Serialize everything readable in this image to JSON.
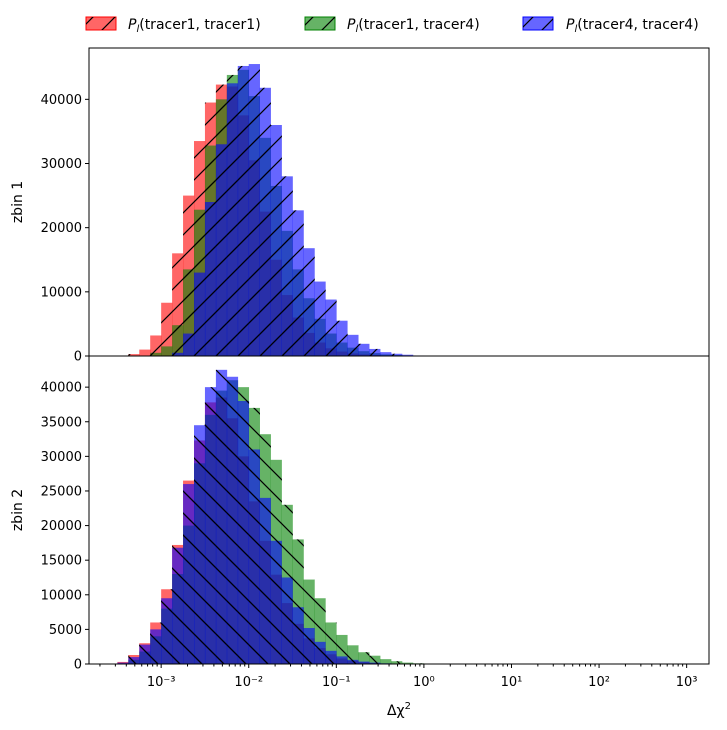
{
  "chart_data": {
    "type": "bar",
    "xlabel": "Δχ²",
    "xscale": "log",
    "xlim": [
      0.00015,
      1800
    ],
    "x_tick_labels": [
      "10⁻³",
      "10⁻²",
      "10⁻¹",
      "10⁰",
      "10¹",
      "10²",
      "10³"
    ],
    "legend_position": "top, above plot",
    "bin_log_edges_start": -3.5,
    "bin_log_width": 0.125,
    "series": [
      {
        "name": "P_l(tracer1, tracer1)",
        "color": "#ff0000",
        "alpha": 0.6
      },
      {
        "name": "P_l(tracer1, tracer4)",
        "color": "#008000",
        "alpha": 0.6
      },
      {
        "name": "P_l(tracer4, tracer4)",
        "color": "#0000ff",
        "alpha": 0.6
      }
    ],
    "panels": [
      {
        "ylabel": "zbin 1",
        "ylim": [
          0,
          48000
        ],
        "yticks": [
          0,
          10000,
          20000,
          30000,
          40000
        ],
        "hatch": "/",
        "series_values": [
          [
            0,
            300,
            1000,
            3200,
            8300,
            16000,
            25000,
            33500,
            39500,
            42300,
            42000,
            37500,
            30500,
            22500,
            15000,
            9500,
            6000,
            3600,
            2100,
            1200,
            700,
            400,
            250,
            150,
            80,
            40,
            20,
            10,
            0
          ],
          [
            0,
            0,
            0,
            500,
            1500,
            4800,
            13500,
            22800,
            32800,
            40000,
            43800,
            44600,
            40500,
            34000,
            26500,
            19500,
            13500,
            9000,
            5800,
            3500,
            2100,
            1300,
            750,
            450,
            250,
            150,
            80,
            40,
            20
          ],
          [
            0,
            0,
            0,
            0,
            0,
            500,
            3500,
            13000,
            24000,
            33000,
            42500,
            45200,
            45500,
            41800,
            36000,
            28000,
            22700,
            16800,
            11600,
            8800,
            5500,
            3300,
            1900,
            1100,
            600,
            350,
            200,
            80,
            40
          ]
        ]
      },
      {
        "ylabel": "zbin 2",
        "ylim": [
          0,
          44500
        ],
        "yticks": [
          0,
          5000,
          10000,
          15000,
          20000,
          25000,
          30000,
          35000,
          40000
        ],
        "hatch": "\\",
        "series_values": [
          [
            300,
            1300,
            3000,
            6000,
            10800,
            17200,
            26500,
            32300,
            37800,
            38500,
            35500,
            30000,
            23500,
            17800,
            12900,
            8800,
            5800,
            3700,
            2300,
            1400,
            800,
            450,
            250,
            130,
            60,
            30,
            10,
            0
          ],
          [
            0,
            600,
            1800,
            4000,
            8000,
            13000,
            20000,
            29000,
            36000,
            39500,
            41000,
            40000,
            37000,
            33200,
            29500,
            23000,
            18000,
            12200,
            9500,
            6000,
            4200,
            2700,
            1700,
            1200,
            700,
            400,
            200,
            100
          ],
          [
            200,
            1000,
            2800,
            5000,
            9500,
            16800,
            26000,
            34500,
            40000,
            42500,
            41500,
            38000,
            31000,
            24000,
            17800,
            12500,
            8200,
            5200,
            3200,
            1900,
            1100,
            600,
            350,
            200,
            100,
            50,
            20,
            0
          ]
        ]
      }
    ]
  }
}
